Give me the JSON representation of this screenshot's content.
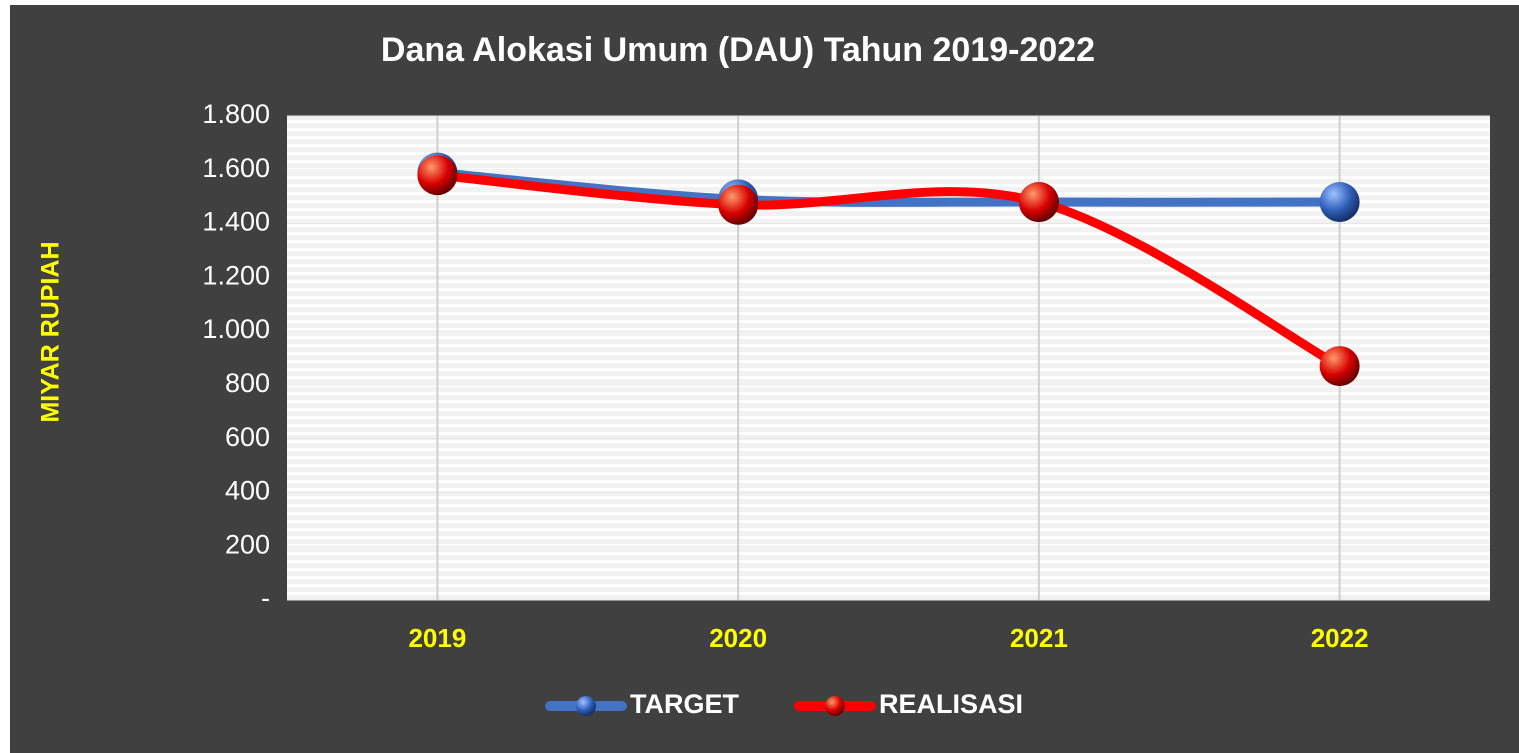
{
  "chart_data": {
    "type": "line",
    "title": "Dana Alokasi Umum (DAU) Tahun 2019-2022",
    "y_label": "MIYAR RUPIAH",
    "categories": [
      "2019",
      "2020",
      "2021",
      "2022"
    ],
    "series": [
      {
        "name": "TARGET",
        "color": "#4472c4",
        "values": [
          1590,
          1490,
          1480,
          1480
        ]
      },
      {
        "name": "REALISASI",
        "color": "#ff0000",
        "values": [
          1580,
          1470,
          1480,
          870
        ]
      }
    ],
    "ylim": [
      0,
      1800
    ],
    "yticks": [
      {
        "value": 0,
        "label": "-"
      },
      200,
      400,
      600,
      800,
      {
        "value": 1000,
        "label": "1.000"
      },
      {
        "value": 1200,
        "label": "1.200"
      },
      {
        "value": 1400,
        "label": "1.400"
      },
      {
        "value": 1600,
        "label": "1.600"
      },
      {
        "value": 1800,
        "label": "1.800"
      }
    ],
    "smooth": true
  }
}
